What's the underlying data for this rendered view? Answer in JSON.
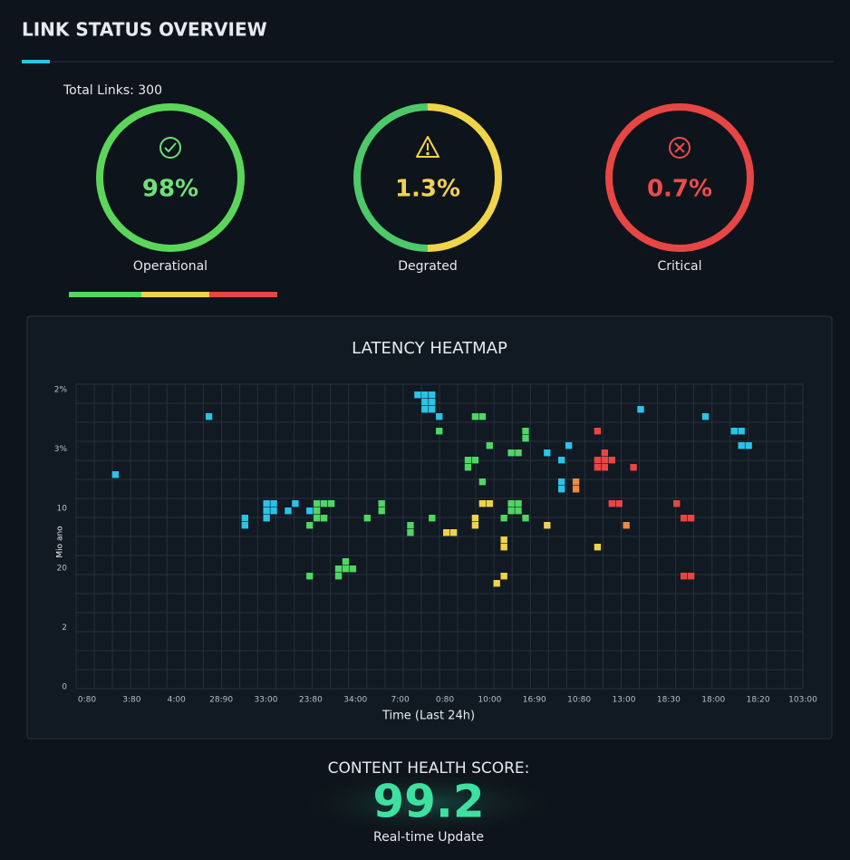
{
  "title": "LINK STATUS OVERVIEW",
  "total_links": "Total Links: 300",
  "gauges": [
    {
      "value_label": "98%",
      "label": "Operational",
      "color": "#6ee07a",
      "ring": [
        "#5bd65b"
      ]
    },
    {
      "value_label": "1.3%",
      "label": "Degrated",
      "color": "#f3d250",
      "ring": [
        "#f0d54a",
        "#4cc96b"
      ]
    },
    {
      "value_label": "0.7%",
      "label": "Critical",
      "color": "#ee4b4b",
      "ring": [
        "#e84545"
      ]
    }
  ],
  "heatmap": {
    "title": "LATENCY HEATMAP",
    "x_title": "Time (Last 24h)",
    "y_title": "Mio ano",
    "x_labels": [
      "0:80",
      "3:80",
      "4:00",
      "28:90",
      "33:00",
      "23:80",
      "34:00",
      "7:00",
      "0:80",
      "10:00",
      "16:90",
      "10:80",
      "13:00",
      "18:30",
      "18:00",
      "18:20",
      "103:00"
    ],
    "y_labels": [
      "2%",
      "3%",
      "10",
      "20",
      "2",
      "0"
    ],
    "columns": 101,
    "rows": 42,
    "groups": [
      {
        "color": "#29c4e8",
        "cells": [
          [
            5,
            12
          ],
          [
            18,
            4
          ],
          [
            47,
            1
          ],
          [
            48,
            1
          ],
          [
            49,
            1
          ],
          [
            48,
            2
          ],
          [
            49,
            2
          ],
          [
            48,
            3
          ],
          [
            49,
            3
          ],
          [
            50,
            4
          ],
          [
            78,
            3
          ],
          [
            87,
            4
          ],
          [
            91,
            6
          ],
          [
            92,
            6
          ],
          [
            92,
            8
          ],
          [
            93,
            8
          ],
          [
            65,
            9
          ],
          [
            67,
            10
          ],
          [
            68,
            8
          ],
          [
            67,
            13
          ],
          [
            67,
            14
          ],
          [
            26,
            16
          ],
          [
            27,
            16
          ],
          [
            26,
            17
          ],
          [
            27,
            17
          ],
          [
            26,
            18
          ],
          [
            23,
            18
          ],
          [
            23,
            19
          ],
          [
            29,
            17
          ],
          [
            30,
            16
          ],
          [
            32,
            17
          ]
        ]
      },
      {
        "color": "#4fd664",
        "cells": [
          [
            55,
            4
          ],
          [
            56,
            4
          ],
          [
            50,
            6
          ],
          [
            57,
            8
          ],
          [
            60,
            9
          ],
          [
            61,
            9
          ],
          [
            62,
            6
          ],
          [
            62,
            7
          ],
          [
            54,
            10
          ],
          [
            55,
            10
          ],
          [
            54,
            11
          ],
          [
            56,
            13
          ],
          [
            33,
            16
          ],
          [
            34,
            16
          ],
          [
            35,
            16
          ],
          [
            33,
            17
          ],
          [
            34,
            18
          ],
          [
            33,
            18
          ],
          [
            32,
            19
          ],
          [
            40,
            18
          ],
          [
            42,
            16
          ],
          [
            42,
            17
          ],
          [
            49,
            18
          ],
          [
            46,
            19
          ],
          [
            46,
            20
          ],
          [
            59,
            18
          ],
          [
            60,
            16
          ],
          [
            61,
            16
          ],
          [
            60,
            17
          ],
          [
            61,
            17
          ],
          [
            62,
            18
          ],
          [
            37,
            24
          ],
          [
            37,
            25
          ],
          [
            38,
            25
          ],
          [
            36,
            25
          ],
          [
            36,
            26
          ],
          [
            32,
            26
          ]
        ]
      },
      {
        "color": "#f0d24a",
        "cells": [
          [
            56,
            16
          ],
          [
            57,
            16
          ],
          [
            55,
            18
          ],
          [
            55,
            19
          ],
          [
            51,
            20
          ],
          [
            52,
            20
          ],
          [
            65,
            19
          ],
          [
            59,
            21
          ],
          [
            59,
            22
          ],
          [
            72,
            22
          ],
          [
            59,
            26
          ],
          [
            58,
            27
          ]
        ]
      },
      {
        "color": "#f08a3c",
        "cells": [
          [
            69,
            13
          ],
          [
            69,
            14
          ],
          [
            76,
            19
          ]
        ]
      },
      {
        "color": "#e84545",
        "cells": [
          [
            72,
            6
          ],
          [
            73,
            9
          ],
          [
            72,
            10
          ],
          [
            73,
            10
          ],
          [
            74,
            10
          ],
          [
            72,
            11
          ],
          [
            73,
            11
          ],
          [
            77,
            11
          ],
          [
            74,
            16
          ],
          [
            75,
            16
          ],
          [
            83,
            16
          ],
          [
            84,
            18
          ],
          [
            85,
            18
          ],
          [
            84,
            26
          ],
          [
            85,
            26
          ]
        ]
      }
    ]
  },
  "score": {
    "title": "CONTENT HEALTH SCORE:",
    "value": "99.2",
    "subtitle": "Real-time Update"
  }
}
